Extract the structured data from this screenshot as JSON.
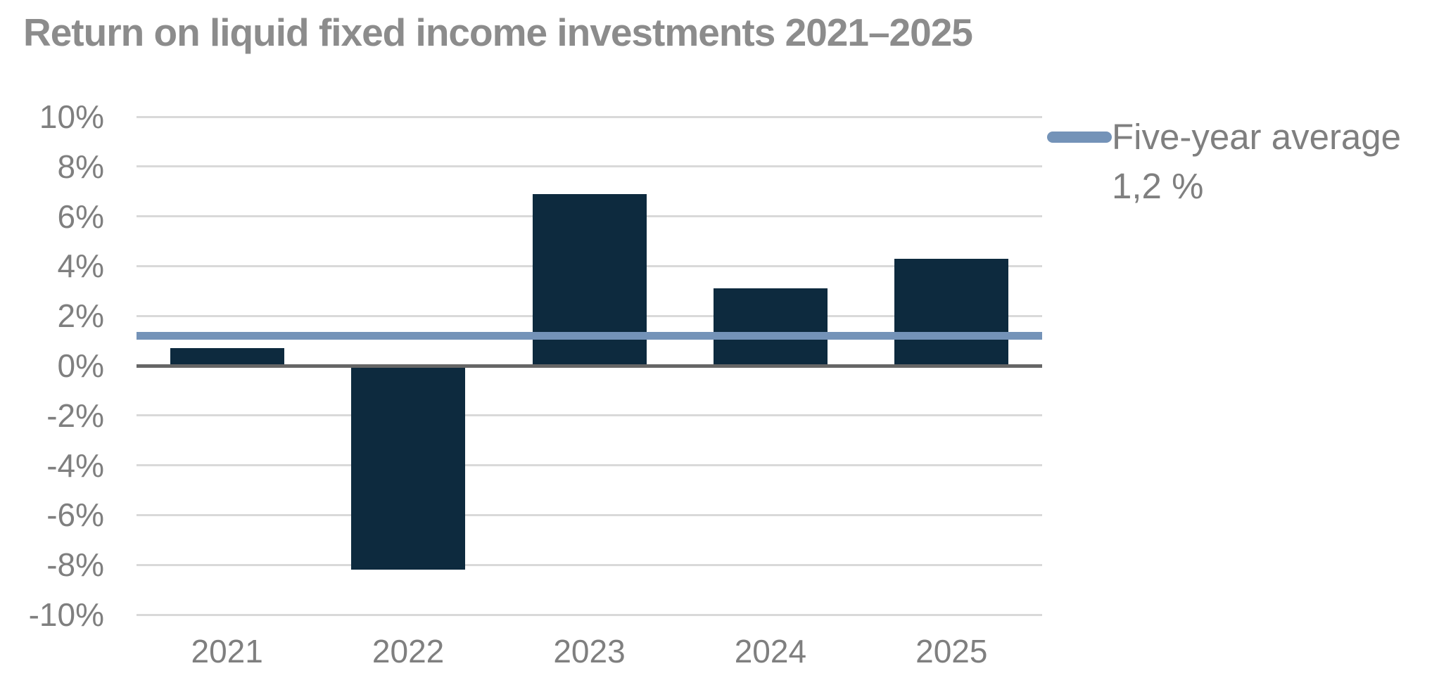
{
  "chart_data": {
    "type": "bar",
    "title": "Return on liquid fixed income investments 2021–2025",
    "categories": [
      "2021",
      "2022",
      "2023",
      "2024",
      "2025"
    ],
    "values": [
      0.7,
      -8.2,
      6.9,
      3.1,
      4.3
    ],
    "unit": "%",
    "xlabel": "",
    "ylabel": "",
    "ylim": [
      -10,
      10
    ],
    "ytick_step": 2,
    "ytick_labels": [
      "10%",
      "8%",
      "6%",
      "4%",
      "2%",
      "0%",
      "-2%",
      "-4%",
      "-6%",
      "-8%",
      "-10%"
    ],
    "grid": true,
    "legend_position": "right",
    "average_line": {
      "value": 1.2,
      "label": "Five-year average",
      "value_label": "1,2 %"
    },
    "colors": {
      "bar": "#0d2a3e",
      "average_line": "#7493b8",
      "title": "#8c8c8c",
      "axis_text": "#7f7f7f",
      "gridline": "#d9d9d9",
      "zero_line": "#666666"
    }
  }
}
